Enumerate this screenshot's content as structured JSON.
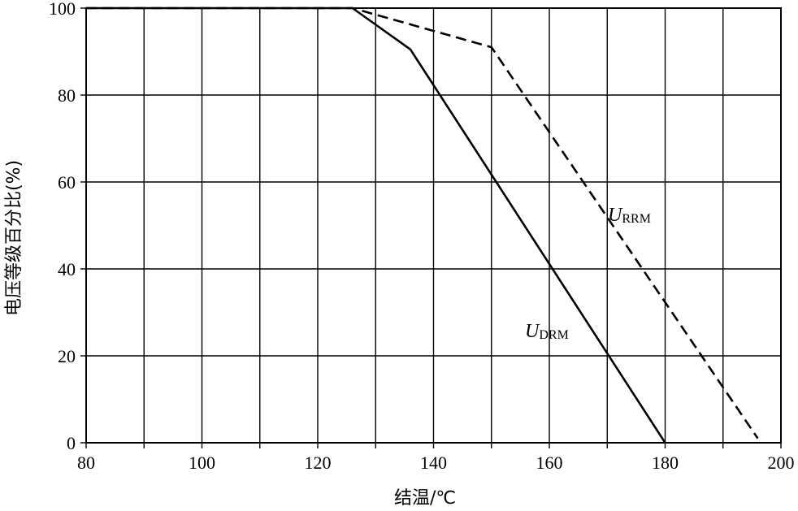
{
  "chart_data": {
    "type": "line",
    "title": "",
    "xlabel": "结温/℃",
    "ylabel": "电压等级百分比(%)",
    "xlim": [
      80,
      200
    ],
    "ylim": [
      0,
      100
    ],
    "xticks": [
      80,
      100,
      120,
      140,
      160,
      180,
      200
    ],
    "yticks": [
      0,
      20,
      40,
      60,
      80,
      100
    ],
    "grid": true,
    "series": [
      {
        "name_main": "U",
        "name_sub": "DRM",
        "style": "solid",
        "x": [
          80,
          126,
          136,
          180
        ],
        "y": [
          100,
          100,
          90.5,
          0
        ]
      },
      {
        "name_main": "U",
        "name_sub": "RRM",
        "style": "dashed",
        "x": [
          80,
          126,
          150,
          196
        ],
        "y": [
          100,
          100,
          91,
          1
        ]
      }
    ]
  }
}
